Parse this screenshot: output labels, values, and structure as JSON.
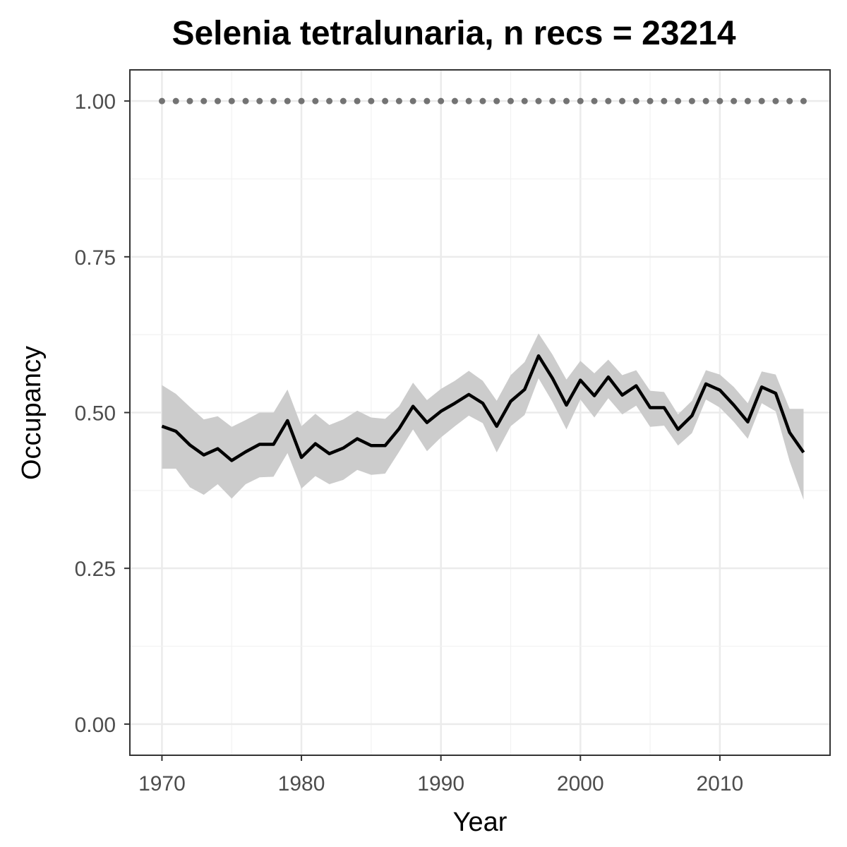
{
  "chart_data": {
    "type": "line",
    "title": "Selenia tetralunaria, n recs = 23214",
    "xlabel": "Year",
    "ylabel": "Occupancy",
    "xlim": [
      1967.7,
      2017.9
    ],
    "ylim": [
      -0.05,
      1.05
    ],
    "x_ticks": [
      1970,
      1980,
      1990,
      2000,
      2010
    ],
    "y_ticks": [
      0.0,
      0.25,
      0.5,
      0.75,
      1.0
    ],
    "x_tick_labels": [
      "1970",
      "1980",
      "1990",
      "2000",
      "2010"
    ],
    "y_tick_labels": [
      "0.00",
      "0.25",
      "0.50",
      "0.75",
      "1.00"
    ],
    "grid": true,
    "x": [
      1970,
      1971,
      1972,
      1973,
      1974,
      1975,
      1976,
      1977,
      1978,
      1979,
      1980,
      1981,
      1982,
      1983,
      1984,
      1985,
      1986,
      1987,
      1988,
      1989,
      1990,
      1991,
      1992,
      1993,
      1994,
      1995,
      1996,
      1997,
      1998,
      1999,
      2000,
      2001,
      2002,
      2003,
      2004,
      2005,
      2006,
      2007,
      2008,
      2009,
      2010,
      2011,
      2012,
      2013,
      2014,
      2015,
      2016
    ],
    "series": [
      {
        "values": [
          0.478,
          0.47,
          0.448,
          0.432,
          0.442,
          0.423,
          0.437,
          0.449,
          0.449,
          0.487,
          0.428,
          0.45,
          0.434,
          0.443,
          0.458,
          0.447,
          0.447,
          0.474,
          0.51,
          0.484,
          0.502,
          0.515,
          0.529,
          0.515,
          0.478,
          0.518,
          0.537,
          0.591,
          0.555,
          0.512,
          0.552,
          0.527,
          0.557,
          0.528,
          0.543,
          0.508,
          0.508,
          0.473,
          0.495,
          0.546,
          0.536,
          0.512,
          0.485,
          0.541,
          0.531,
          0.468,
          0.436
        ],
        "lower": [
          0.41,
          0.41,
          0.38,
          0.368,
          0.385,
          0.362,
          0.385,
          0.396,
          0.397,
          0.435,
          0.378,
          0.398,
          0.385,
          0.392,
          0.408,
          0.4,
          0.402,
          0.437,
          0.473,
          0.438,
          0.46,
          0.478,
          0.495,
          0.483,
          0.436,
          0.478,
          0.496,
          0.555,
          0.517,
          0.473,
          0.521,
          0.492,
          0.523,
          0.497,
          0.511,
          0.477,
          0.479,
          0.447,
          0.467,
          0.521,
          0.508,
          0.485,
          0.458,
          0.515,
          0.502,
          0.422,
          0.36
        ],
        "upper": [
          0.544,
          0.53,
          0.509,
          0.489,
          0.494,
          0.477,
          0.488,
          0.5,
          0.5,
          0.537,
          0.478,
          0.498,
          0.48,
          0.489,
          0.503,
          0.492,
          0.49,
          0.51,
          0.548,
          0.52,
          0.538,
          0.551,
          0.567,
          0.551,
          0.519,
          0.56,
          0.581,
          0.627,
          0.593,
          0.553,
          0.583,
          0.563,
          0.585,
          0.56,
          0.568,
          0.535,
          0.533,
          0.497,
          0.519,
          0.568,
          0.561,
          0.541,
          0.515,
          0.566,
          0.561,
          0.506,
          0.506
        ],
        "color": "#000000",
        "ribbon_color": "#cccccc"
      },
      {
        "values": [
          1,
          1,
          1,
          1,
          1,
          1,
          1,
          1,
          1,
          1,
          1,
          1,
          1,
          1,
          1,
          1,
          1,
          1,
          1,
          1,
          1,
          1,
          1,
          1,
          1,
          1,
          1,
          1,
          1,
          1,
          1,
          1,
          1,
          1,
          1,
          1,
          1,
          1,
          1,
          1,
          1,
          1,
          1,
          1,
          1,
          1,
          1
        ],
        "style": "dotted",
        "color": "#737373"
      }
    ]
  }
}
